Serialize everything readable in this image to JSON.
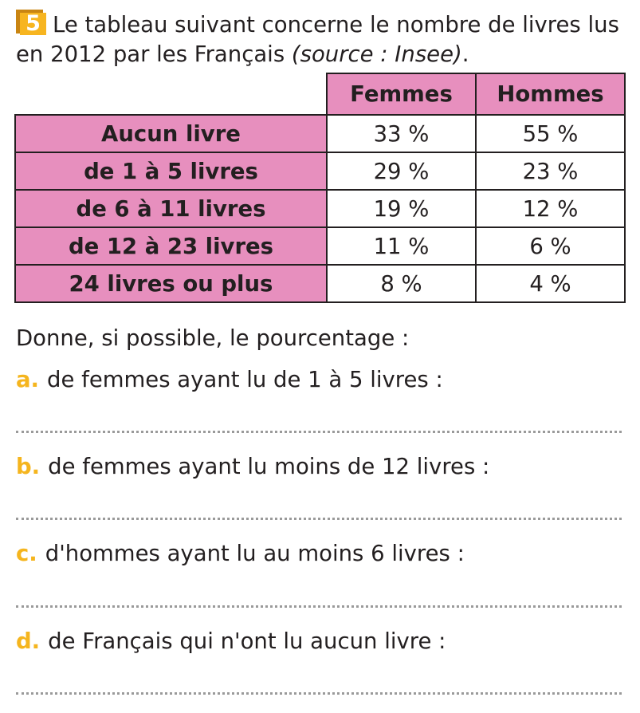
{
  "exercise": {
    "number": "5",
    "intro_main": "Le tableau suivant concerne le nombre de livres lus en 2012 par les Français ",
    "intro_source": "(source : Insee)",
    "intro_end": "."
  },
  "table": {
    "columns": [
      "Femmes",
      "Hommes"
    ],
    "rows": [
      {
        "label": "Aucun livre",
        "femmes": "33 %",
        "hommes": "55 %"
      },
      {
        "label": "de 1 à 5 livres",
        "femmes": "29 %",
        "hommes": "23 %"
      },
      {
        "label": "de 6 à 11 livres",
        "femmes": "19 %",
        "hommes": "12 %"
      },
      {
        "label": "de 12 à 23 livres",
        "femmes": "11 %",
        "hommes": "6 %"
      },
      {
        "label": "24 livres ou plus",
        "femmes": "8 %",
        "hommes": "4 %"
      }
    ]
  },
  "prompt": "Donne, si possible, le pourcentage :",
  "questions": [
    {
      "letter": "a.",
      "text": "de femmes ayant lu de 1 à 5 livres :"
    },
    {
      "letter": "b.",
      "text": "de femmes ayant lu moins de 12 livres :"
    },
    {
      "letter": "c.",
      "text": "d'hommes ayant lu au moins 6 livres :"
    },
    {
      "letter": "d.",
      "text": "de Français qui n'ont lu aucun livre :"
    }
  ],
  "colors": {
    "header_fill": "#e78fbe",
    "accent": "#f5b51e",
    "badge": "#f7b520",
    "text": "#231f20"
  }
}
